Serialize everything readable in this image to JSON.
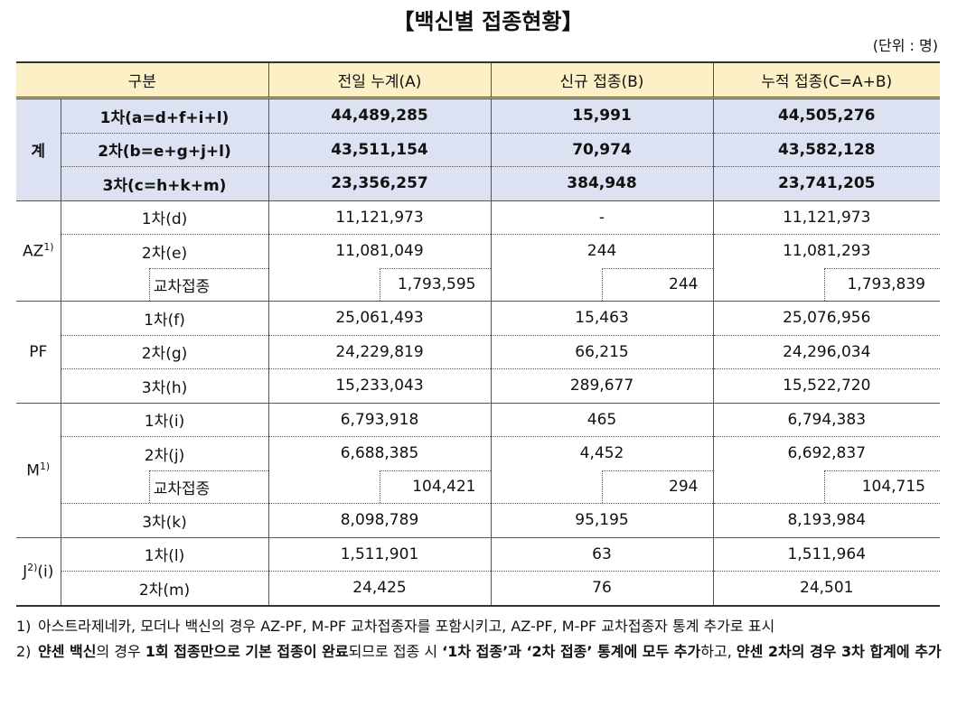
{
  "title": "【백신별 접종현황】",
  "unit": "(단위 : 명)",
  "table": {
    "header": [
      "구분",
      "전일 누계(A)",
      "신규 접종(B)",
      "누적 접종(C=A+B)"
    ],
    "groups": [
      {
        "label": "계",
        "rows": [
          {
            "label": "1차(a=d+f+i+l)",
            "cells": [
              "44,489,285",
              "15,991",
              "44,505,276"
            ]
          },
          {
            "label": "2차(b=e+g+j+l)",
            "cells": [
              "43,511,154",
              "70,974",
              "43,582,128"
            ]
          },
          {
            "label": "3차(c=h+k+m)",
            "cells": [
              "23,356,257",
              "384,948",
              "23,741,205"
            ]
          }
        ]
      },
      {
        "label": "AZ",
        "note": "1)",
        "rows": [
          {
            "label": "1차(d)",
            "cells": [
              "11,121,973",
              "-",
              "11,121,973"
            ]
          },
          {
            "label": "2차(e)",
            "cells": [
              "11,081,049",
              "244",
              "11,081,293"
            ],
            "sub": {
              "label": "교차접종",
              "cells": [
                "1,793,595",
                "244",
                "1,793,839"
              ]
            }
          }
        ]
      },
      {
        "label": "PF",
        "rows": [
          {
            "label": "1차(f)",
            "cells": [
              "25,061,493",
              "15,463",
              "25,076,956"
            ]
          },
          {
            "label": "2차(g)",
            "cells": [
              "24,229,819",
              "66,215",
              "24,296,034"
            ]
          },
          {
            "label": "3차(h)",
            "cells": [
              "15,233,043",
              "289,677",
              "15,522,720"
            ]
          }
        ]
      },
      {
        "label": "M",
        "note": "1)",
        "rows": [
          {
            "label": "1차(i)",
            "cells": [
              "6,793,918",
              "465",
              "6,794,383"
            ]
          },
          {
            "label": "2차(j)",
            "cells": [
              "6,688,385",
              "4,452",
              "6,692,837"
            ],
            "sub": {
              "label": "교차접종",
              "cells": [
                "104,421",
                "294",
                "104,715"
              ]
            }
          },
          {
            "label": "3차(k)",
            "cells": [
              "8,098,789",
              "95,195",
              "8,193,984"
            ]
          }
        ]
      },
      {
        "label": "J",
        "note": "2)",
        "suffix": "(i)",
        "rows": [
          {
            "label": "1차(l)",
            "cells": [
              "1,511,901",
              "63",
              "1,511,964"
            ]
          },
          {
            "label": "2차(m)",
            "cells": [
              "24,425",
              "76",
              "24,501"
            ]
          }
        ]
      }
    ]
  },
  "footnotes": [
    {
      "marker": "1)",
      "segments": [
        {
          "text": "아스트라제네카, 모더나 백신의 경우 AZ-PF, M-PF 교차접종자를 포함시키고, AZ-PF, M-PF 교차접종자 통계 추가로 표시",
          "bold": false
        }
      ]
    },
    {
      "marker": "2)",
      "segments": [
        {
          "text": "얀센 백신",
          "bold": true
        },
        {
          "text": "의 경우 ",
          "bold": false
        },
        {
          "text": "1회 접종만으로 기본 접종이 완료",
          "bold": true
        },
        {
          "text": "되므로 접종 시 ",
          "bold": false
        },
        {
          "text": "‘1차 접종’과 ‘2차 접종’ 통계에 모두 추가",
          "bold": true
        },
        {
          "text": "하고, ",
          "bold": false
        },
        {
          "text": "얀센 2차의 경우 3차 합계에 추가",
          "bold": true
        }
      ]
    }
  ]
}
